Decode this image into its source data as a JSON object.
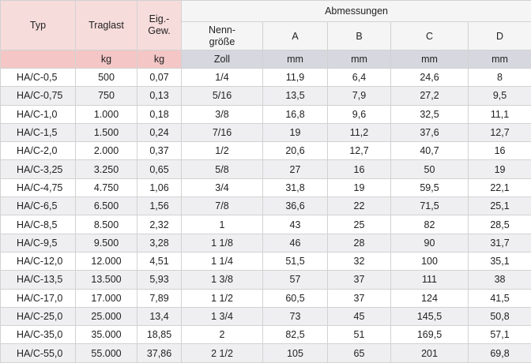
{
  "table": {
    "headers": {
      "typ": "Typ",
      "traglast": "Traglast",
      "eigengewicht": "Eig.-\nGew.",
      "abmessungen": "Abmessungen",
      "nenngroesse": "Nenn-\ngröße",
      "a": "A",
      "b": "B",
      "c": "C",
      "d": "D"
    },
    "units": [
      "",
      "kg",
      "kg",
      "Zoll",
      "mm",
      "mm",
      "mm",
      "mm"
    ],
    "rows": [
      [
        "HA/C-0,5",
        "500",
        "0,07",
        "1/4",
        "11,9",
        "6,4",
        "24,6",
        "8"
      ],
      [
        "HA/C-0,75",
        "750",
        "0,13",
        "5/16",
        "13,5",
        "7,9",
        "27,2",
        "9,5"
      ],
      [
        "HA/C-1,0",
        "1.000",
        "0,18",
        "3/8",
        "16,8",
        "9,6",
        "32,5",
        "11,1"
      ],
      [
        "HA/C-1,5",
        "1.500",
        "0,24",
        "7/16",
        "19",
        "11,2",
        "37,6",
        "12,7"
      ],
      [
        "HA/C-2,0",
        "2.000",
        "0,37",
        "1/2",
        "20,6",
        "12,7",
        "40,7",
        "16"
      ],
      [
        "HA/C-3,25",
        "3.250",
        "0,65",
        "5/8",
        "27",
        "16",
        "50",
        "19"
      ],
      [
        "HA/C-4,75",
        "4.750",
        "1,06",
        "3/4",
        "31,8",
        "19",
        "59,5",
        "22,1"
      ],
      [
        "HA/C-6,5",
        "6.500",
        "1,56",
        "7/8",
        "36,6",
        "22",
        "71,5",
        "25,1"
      ],
      [
        "HA/C-8,5",
        "8.500",
        "2,32",
        "1",
        "43",
        "25",
        "82",
        "28,5"
      ],
      [
        "HA/C-9,5",
        "9.500",
        "3,28",
        "1 1/8",
        "46",
        "28",
        "90",
        "31,7"
      ],
      [
        "HA/C-12,0",
        "12.000",
        "4,51",
        "1 1/4",
        "51,5",
        "32",
        "100",
        "35,1"
      ],
      [
        "HA/C-13,5",
        "13.500",
        "5,93",
        "1 3/8",
        "57",
        "37",
        "111",
        "38"
      ],
      [
        "HA/C-17,0",
        "17.000",
        "7,89",
        "1 1/2",
        "60,5",
        "37",
        "124",
        "41,5"
      ],
      [
        "HA/C-25,0",
        "25.000",
        "13,4",
        "1 3/4",
        "73",
        "45",
        "145,5",
        "50,8"
      ],
      [
        "HA/C-35,0",
        "35.000",
        "18,85",
        "2",
        "82,5",
        "51",
        "169,5",
        "57,1"
      ],
      [
        "HA/C-55,0",
        "55.000",
        "37,86",
        "2 1/2",
        "105",
        "65",
        "201",
        "69,8"
      ]
    ]
  }
}
